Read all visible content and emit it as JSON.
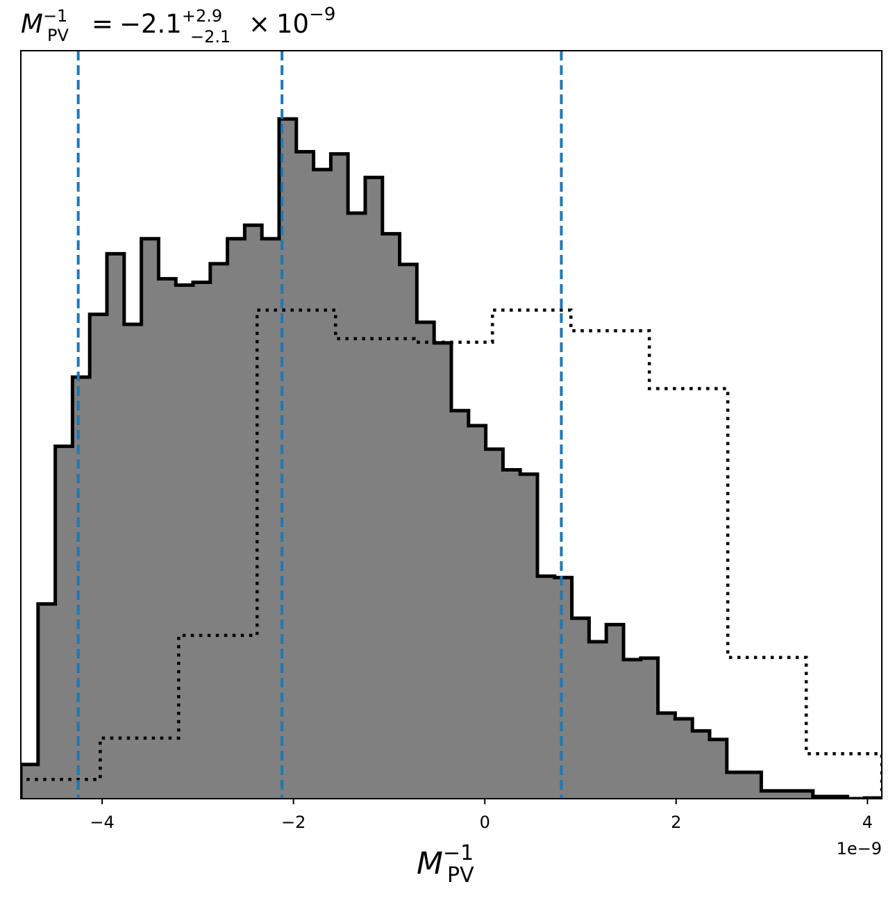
{
  "chart_data": {
    "type": "histogram",
    "title": {
      "symbol": "M",
      "subscript": "PV",
      "superscript": "−1",
      "equals": "=",
      "value": "−2.1",
      "upper": "+2.9",
      "lower": "−2.1",
      "times": "×",
      "base": "10",
      "exponent": "−9"
    },
    "xlabel": {
      "symbol": "M",
      "subscript": "PV",
      "superscript": "−1"
    },
    "offset_text": "1e−9",
    "xlim": [
      -4.85,
      4.15
    ],
    "ylim": [
      0,
      1.0
    ],
    "xticks": [
      {
        "value": -4,
        "label": "−4"
      },
      {
        "value": -2,
        "label": "−2"
      },
      {
        "value": 0,
        "label": "0"
      },
      {
        "value": 2,
        "label": "2"
      },
      {
        "value": 4,
        "label": "4"
      }
    ],
    "yticks_visible": false,
    "grid": false,
    "posterior": {
      "style": "filled-step",
      "fill_color": "#808080",
      "edge_color": "#000000",
      "bin_edges": [
        -4.85,
        -4.67,
        -4.49,
        -4.31,
        -4.13,
        -3.95,
        -3.77,
        -3.59,
        -3.41,
        -3.23,
        -3.05,
        -2.87,
        -2.69,
        -2.51,
        -2.33,
        -2.15,
        -1.97,
        -1.79,
        -1.61,
        -1.43,
        -1.25,
        -1.07,
        -0.89,
        -0.71,
        -0.53,
        -0.35,
        -0.17,
        0.01,
        0.19,
        0.37,
        0.55,
        0.73,
        0.91,
        1.09,
        1.27,
        1.45,
        1.63,
        1.81,
        1.99,
        2.17,
        2.35,
        2.53,
        2.71,
        2.89,
        3.07,
        3.25,
        3.43,
        3.61,
        3.79,
        3.97,
        4.15
      ],
      "counts": [
        0.048,
        0.273,
        0.494,
        0.591,
        0.679,
        0.764,
        0.665,
        0.785,
        0.729,
        0.72,
        0.724,
        0.75,
        0.785,
        0.804,
        0.785,
        0.953,
        0.907,
        0.882,
        0.904,
        0.821,
        0.871,
        0.792,
        0.749,
        0.668,
        0.639,
        0.544,
        0.523,
        0.49,
        0.461,
        0.455,
        0.312,
        0.31,
        0.253,
        0.22,
        0.244,
        0.195,
        0.197,
        0.12,
        0.112,
        0.095,
        0.083,
        0.037,
        0.037,
        0.011,
        0.011,
        0.011,
        0.003,
        0.003,
        0.0,
        0.001
      ]
    },
    "prior": {
      "style": "dotted-step",
      "color": "#000000",
      "bin_edges": [
        -4.85,
        -4.02,
        -3.2,
        -2.38,
        -1.56,
        -0.74,
        0.08,
        0.9,
        1.72,
        2.54,
        3.36,
        4.15
      ],
      "counts": [
        0.027,
        0.085,
        0.229,
        0.685,
        0.645,
        0.64,
        0.685,
        0.656,
        0.575,
        0.198,
        0.063
      ]
    },
    "quantile_lines": {
      "color": "#1f77b4",
      "style": "dashed",
      "values": [
        -4.25,
        -2.12,
        0.8
      ]
    }
  }
}
